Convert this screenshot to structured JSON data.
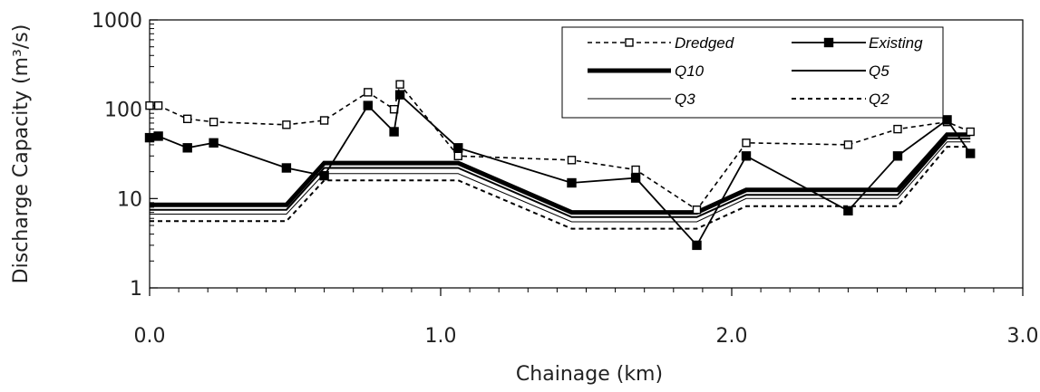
{
  "chart_data": {
    "type": "line",
    "title": "",
    "xlabel": "Chainage (km)",
    "ylabel": "Discharge Capacity (m³/s)",
    "xlim": [
      0,
      3.0
    ],
    "ylim": [
      1,
      1000
    ],
    "yscale": "log",
    "x_ticks": [
      0,
      1.0,
      2.0,
      3.0
    ],
    "x_tick_labels": [
      "0.0",
      "1.0",
      "2.0",
      "3.0"
    ],
    "y_ticks": [
      1,
      10,
      100,
      1000
    ],
    "y_tick_labels": [
      "1",
      "10",
      "100",
      "1000"
    ],
    "grid": false,
    "legend_position": "top-right",
    "series": [
      {
        "name": "Dredged",
        "style": "dashed-open-square",
        "x": [
          0.0,
          0.03,
          0.13,
          0.22,
          0.47,
          0.6,
          0.75,
          0.84,
          0.86,
          1.06,
          1.45,
          1.67,
          1.88,
          2.05,
          2.4,
          2.57,
          2.74,
          2.82
        ],
        "y": [
          110,
          110,
          78,
          72,
          67,
          75,
          155,
          100,
          190,
          30,
          27,
          21,
          7.5,
          42,
          40,
          60,
          72,
          56
        ]
      },
      {
        "name": "Existing",
        "style": "solid-filled-square",
        "x": [
          0.0,
          0.03,
          0.13,
          0.22,
          0.47,
          0.6,
          0.75,
          0.84,
          0.86,
          1.06,
          1.45,
          1.67,
          1.88,
          2.05,
          2.4,
          2.57,
          2.74,
          2.82
        ],
        "y": [
          48,
          50,
          37,
          42,
          22,
          18,
          110,
          56,
          145,
          37,
          15,
          17,
          3,
          30,
          7.3,
          30,
          76,
          32
        ]
      },
      {
        "name": "Q10",
        "style": "thick",
        "x": [
          0.0,
          0.47,
          0.6,
          1.06,
          1.45,
          1.88,
          2.05,
          2.57,
          2.74,
          2.82
        ],
        "y": [
          8.5,
          8.5,
          25,
          25,
          7,
          7,
          12.5,
          12.5,
          52,
          52
        ]
      },
      {
        "name": "Q5",
        "style": "medium",
        "x": [
          0.0,
          0.47,
          0.6,
          1.06,
          1.45,
          1.88,
          2.05,
          2.57,
          2.74,
          2.82
        ],
        "y": [
          7.5,
          7.5,
          22,
          22,
          6.2,
          6.2,
          11,
          11,
          47,
          47
        ]
      },
      {
        "name": "Q3",
        "style": "thin",
        "x": [
          0.0,
          0.47,
          0.6,
          1.06,
          1.45,
          1.88,
          2.05,
          2.57,
          2.74,
          2.82
        ],
        "y": [
          6.7,
          6.7,
          19,
          19,
          5.5,
          5.5,
          10,
          10,
          43,
          43
        ]
      },
      {
        "name": "Q2",
        "style": "dashed",
        "x": [
          0.0,
          0.47,
          0.6,
          1.06,
          1.45,
          1.88,
          2.05,
          2.57,
          2.74,
          2.82
        ],
        "y": [
          5.6,
          5.6,
          16,
          16,
          4.6,
          4.6,
          8.2,
          8.2,
          38,
          38
        ]
      }
    ]
  }
}
